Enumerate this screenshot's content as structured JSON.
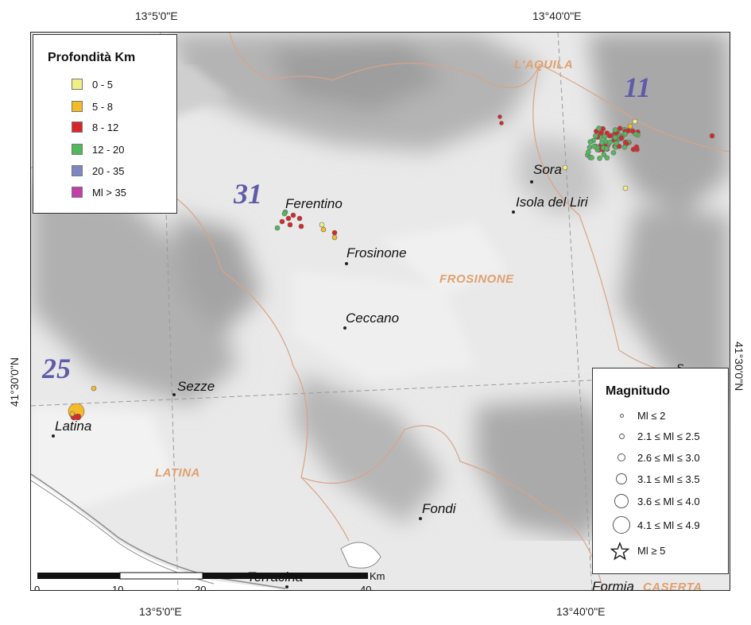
{
  "coords": {
    "top_left": "13°5'0\"E",
    "top_right": "13°40'0\"E",
    "bottom_left": "13°5'0\"E",
    "bottom_right": "13°40'0\"E",
    "left": "41°30'0\"N",
    "right": "41°30'0\"N"
  },
  "places": {
    "ferentino": "Ferentino",
    "frosinone": "Frosinone",
    "ceccano": "Ceccano",
    "sora": "Sora",
    "isola": "Isola del Liri",
    "sezze": "Sezze",
    "latina": "Latina",
    "fondi": "Fondi",
    "terracina": "Terracina",
    "formia": "Formia",
    "partial": "S"
  },
  "regions": {
    "laquila": "L'AQUILA",
    "frosinone": "FROSINONE",
    "latina": "LATINA",
    "caserta": "CASERTA"
  },
  "sequences": {
    "s11": "11",
    "s31": "31",
    "s25": "25"
  },
  "depth_legend": {
    "title": "Profondità Km",
    "items": [
      {
        "label": "0 - 5",
        "color": "#f2ee86"
      },
      {
        "label": "5 - 8",
        "color": "#f4bb28"
      },
      {
        "label": "8 - 12",
        "color": "#d62828"
      },
      {
        "label": "12 - 20",
        "color": "#52b85c"
      },
      {
        "label": "20 - 35",
        "color": "#7f86c4"
      },
      {
        "label": "Ml > 35",
        "color": "#c23fa8"
      }
    ]
  },
  "magnitude_legend": {
    "title": "Magnitudo",
    "items": [
      {
        "label": "Ml ≤ 2"
      },
      {
        "label": "2.1 ≤ Ml ≤ 2.5"
      },
      {
        "label": "2.6 ≤ Ml ≤ 3.0"
      },
      {
        "label": "3.1 ≤ Ml ≤ 3.5"
      },
      {
        "label": "3.6 ≤ Ml ≤ 4.0"
      },
      {
        "label": "4.1 ≤ Ml ≤ 4.9"
      },
      {
        "label": "Ml ≥ 5"
      }
    ]
  },
  "scalebar": {
    "ticks": [
      "0",
      "10",
      "20",
      "40"
    ],
    "unit": "Km"
  }
}
